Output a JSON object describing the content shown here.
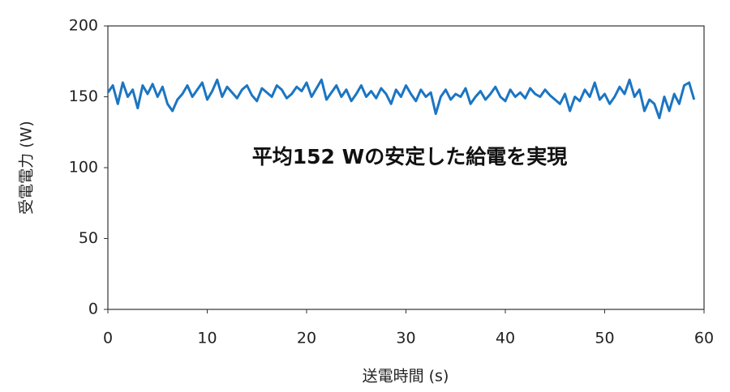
{
  "chart_data": {
    "type": "line",
    "annotation": "平均152 Wの安定した給電を実現",
    "x_label": "送電時間 (s)",
    "y_label": "受電電力 (W)",
    "xlim": [
      0,
      60
    ],
    "xticks": [
      0,
      10,
      20,
      30,
      40,
      50,
      60
    ],
    "ylim": [
      0,
      200
    ],
    "yticks": [
      0,
      50,
      100,
      150,
      200
    ],
    "grid": false,
    "x": [
      0,
      0.5,
      1,
      1.5,
      2,
      2.5,
      3,
      3.5,
      4,
      4.5,
      5,
      5.5,
      6,
      6.5,
      7,
      7.5,
      8,
      8.5,
      9,
      9.5,
      10,
      10.5,
      11,
      11.5,
      12,
      12.5,
      13,
      13.5,
      14,
      14.5,
      15,
      15.5,
      16,
      16.5,
      17,
      17.5,
      18,
      18.5,
      19,
      19.5,
      20,
      20.5,
      21,
      21.5,
      22,
      22.5,
      23,
      23.5,
      24,
      24.5,
      25,
      25.5,
      26,
      26.5,
      27,
      27.5,
      28,
      28.5,
      29,
      29.5,
      30,
      30.5,
      31,
      31.5,
      32,
      32.5,
      33,
      33.5,
      34,
      34.5,
      35,
      35.5,
      36,
      36.5,
      37,
      37.5,
      38,
      38.5,
      39,
      39.5,
      40,
      40.5,
      41,
      41.5,
      42,
      42.5,
      43,
      43.5,
      44,
      44.5,
      45,
      45.5,
      46,
      46.5,
      47,
      47.5,
      48,
      48.5,
      49,
      49.5,
      50,
      50.5,
      51,
      51.5,
      52,
      52.5,
      53,
      53.5,
      54,
      54.5,
      55,
      55.5,
      56,
      56.5,
      57,
      57.5,
      58,
      58.5,
      59
    ],
    "series": [
      {
        "color": "#1b75c3",
        "values": [
          153,
          158,
          145,
          160,
          150,
          155,
          142,
          158,
          152,
          159,
          150,
          157,
          145,
          140,
          148,
          152,
          158,
          150,
          155,
          160,
          148,
          154,
          162,
          150,
          157,
          153,
          149,
          155,
          158,
          151,
          147,
          156,
          153,
          150,
          158,
          155,
          149,
          152,
          157,
          154,
          160,
          150,
          156,
          162,
          148,
          153,
          158,
          150,
          155,
          147,
          152,
          158,
          150,
          154,
          149,
          156,
          152,
          145,
          155,
          150,
          158,
          152,
          147,
          155,
          150,
          153,
          138,
          150,
          155,
          148,
          152,
          150,
          156,
          145,
          150,
          154,
          148,
          152,
          157,
          150,
          147,
          155,
          150,
          153,
          149,
          156,
          152,
          150,
          155,
          151,
          148,
          145,
          152,
          140,
          150,
          147,
          155,
          150,
          160,
          148,
          152,
          145,
          150,
          157,
          152,
          162,
          150,
          155,
          140,
          148,
          145,
          135,
          150,
          140,
          152,
          145,
          158,
          160,
          148
        ]
      }
    ]
  }
}
